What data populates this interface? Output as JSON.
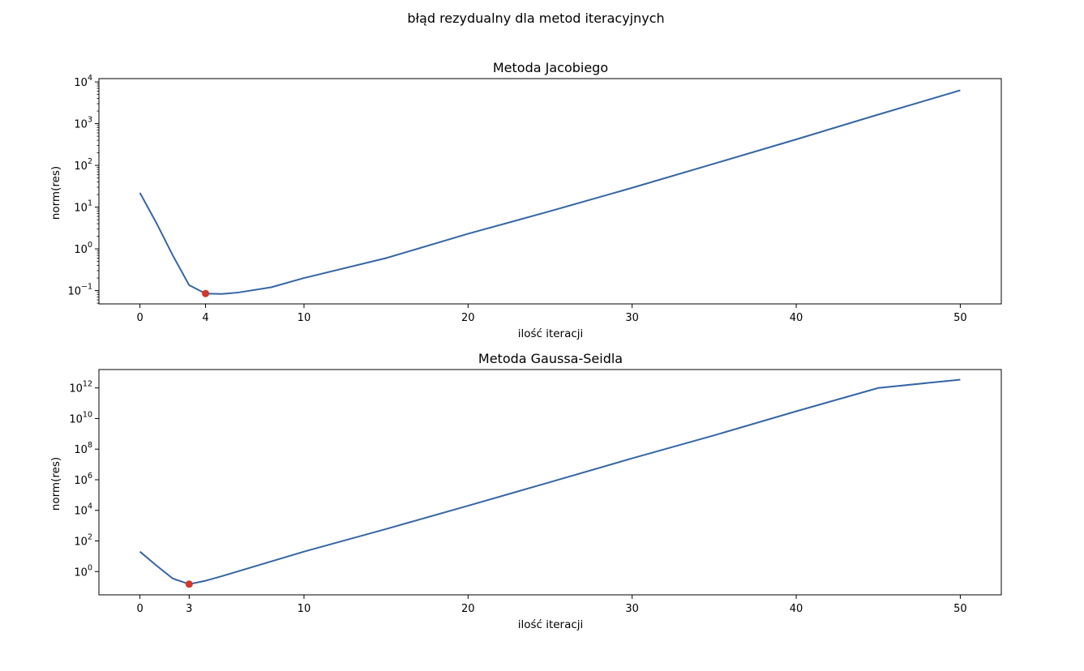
{
  "figure": {
    "suptitle": "błąd rezydualny dla metod iteracyjnych"
  },
  "chart_data": [
    {
      "type": "line",
      "title": "Metoda Jacobiego",
      "xlabel": "ilość iteracji",
      "ylabel": "norm(res)",
      "yscale": "log",
      "xlim": [
        -2.5,
        52.5
      ],
      "ylim": [
        0.048,
        12000
      ],
      "xticks": [
        0,
        4,
        10,
        20,
        30,
        40,
        50
      ],
      "yticks_exp": [
        -1,
        0,
        1,
        2,
        3,
        4
      ],
      "line_color": "#3465a4",
      "marker_color": "#d0382a",
      "minimum": {
        "x": 4,
        "y": 0.085
      },
      "series": [
        {
          "x": [
            0,
            1,
            2,
            3,
            4,
            5,
            6,
            8,
            10,
            15,
            20,
            25,
            30,
            35,
            40,
            45,
            50
          ],
          "values": [
            22,
            4.2,
            0.7,
            0.135,
            0.085,
            0.083,
            0.09,
            0.12,
            0.2,
            0.6,
            2.3,
            8,
            29,
            110,
            420,
            1650,
            6300
          ]
        }
      ]
    },
    {
      "type": "line",
      "title": "Metoda Gaussa-Seidla",
      "xlabel": "ilość iteracji",
      "ylabel": "norm(res)",
      "yscale": "log",
      "xlim": [
        -2.5,
        52.5
      ],
      "ylim": [
        0.03,
        16000000000000.0
      ],
      "xticks": [
        0,
        3,
        10,
        20,
        30,
        40,
        50
      ],
      "yticks_exp": [
        0,
        2,
        4,
        6,
        8,
        10,
        12
      ],
      "line_color": "#3465a4",
      "marker_color": "#d0382a",
      "minimum": {
        "x": 3,
        "y": 0.15
      },
      "series": [
        {
          "x": [
            0,
            1,
            2,
            3,
            4,
            5,
            10,
            15,
            20,
            25,
            30,
            35,
            40,
            45,
            50
          ],
          "values": [
            20,
            2.5,
            0.35,
            0.15,
            0.25,
            0.5,
            20,
            600,
            20000,
            700000,
            25000000.0,
            800000000.0,
            30000000000.0,
            1000000000000.0,
            3500000000000.0
          ]
        }
      ]
    }
  ]
}
